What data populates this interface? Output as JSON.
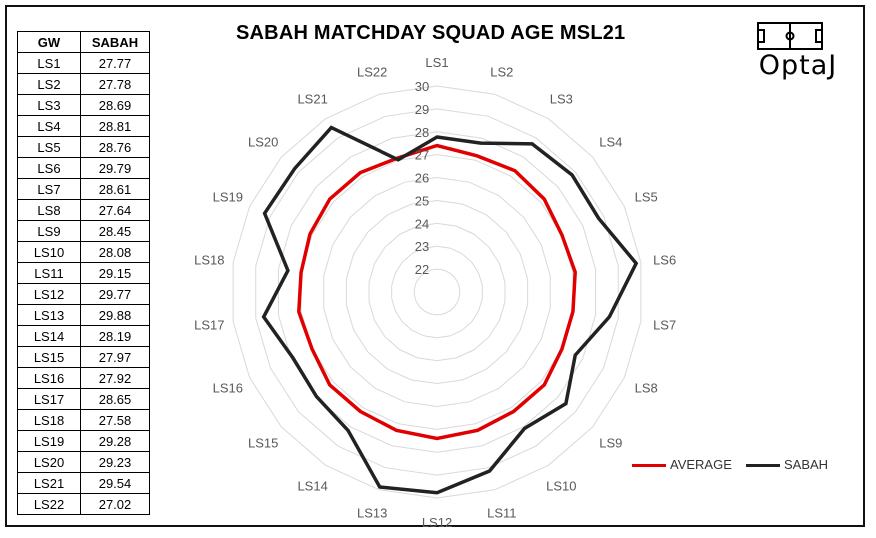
{
  "table": {
    "headers": [
      "GW",
      "SABAH"
    ],
    "rows": [
      [
        "LS1",
        "27.77"
      ],
      [
        "LS2",
        "27.78"
      ],
      [
        "LS3",
        "28.69"
      ],
      [
        "LS4",
        "28.81"
      ],
      [
        "LS5",
        "28.76"
      ],
      [
        "LS6",
        "29.79"
      ],
      [
        "LS7",
        "28.61"
      ],
      [
        "LS8",
        "27.64"
      ],
      [
        "LS9",
        "28.45"
      ],
      [
        "LS10",
        "28.08"
      ],
      [
        "LS11",
        "29.15"
      ],
      [
        "LS12",
        "29.77"
      ],
      [
        "LS13",
        "29.88"
      ],
      [
        "LS14",
        "28.19"
      ],
      [
        "LS15",
        "27.97"
      ],
      [
        "LS16",
        "27.92"
      ],
      [
        "LS17",
        "28.65"
      ],
      [
        "LS18",
        "27.58"
      ],
      [
        "LS19",
        "29.28"
      ],
      [
        "LS20",
        "29.23"
      ],
      [
        "LS21",
        "29.54"
      ],
      [
        "LS22",
        "27.02"
      ]
    ]
  },
  "logo": {
    "text": "OptaJ"
  },
  "chart_data": {
    "type": "radar",
    "title": "SABAH MATCHDAY SQUAD AGE MSL21",
    "categories": [
      "LS1",
      "LS2",
      "LS3",
      "LS4",
      "LS5",
      "LS6",
      "LS7",
      "LS8",
      "LS9",
      "LS10",
      "LS11",
      "LS12",
      "LS13",
      "LS14",
      "LS15",
      "LS16",
      "LS17",
      "LS18",
      "LS19",
      "LS20",
      "LS21",
      "LS22"
    ],
    "rlim": [
      21,
      30
    ],
    "ticks": [
      22,
      23,
      24,
      25,
      26,
      27,
      28,
      29,
      30
    ],
    "grid": true,
    "legend_position": "bottom-right",
    "series": [
      {
        "name": "AVERAGE",
        "color": "#e00000",
        "values": [
          27.4,
          27.2,
          27.3,
          27.2,
          27.0,
          27.1,
          27.0,
          27.0,
          27.2,
          27.2,
          27.3,
          27.4,
          27.3,
          27.2,
          27.2,
          27.0,
          27.1,
          27.0,
          27.1,
          27.2,
          27.2,
          27.1
        ]
      },
      {
        "name": "SABAH",
        "color": "#222222",
        "values": [
          27.77,
          27.78,
          28.69,
          28.81,
          28.76,
          29.79,
          28.61,
          27.64,
          28.45,
          28.08,
          29.15,
          29.77,
          29.88,
          28.19,
          27.97,
          27.92,
          28.65,
          27.58,
          29.28,
          29.23,
          29.54,
          27.02
        ]
      }
    ]
  }
}
